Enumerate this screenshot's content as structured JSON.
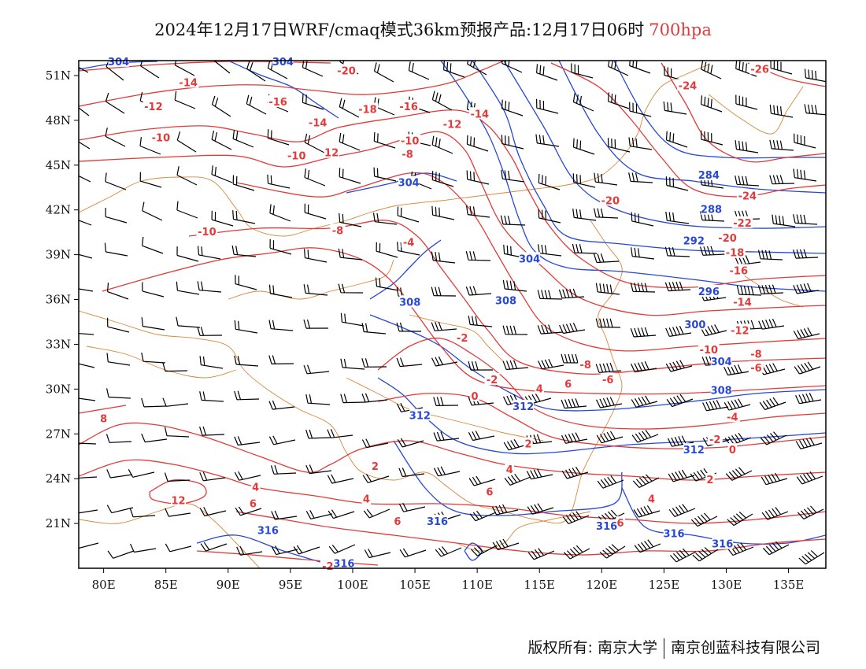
{
  "title": {
    "text": "2024年12月17日WRF/cmaq模式36km预报产品:12月17日06时",
    "level": "700hpa"
  },
  "map": {
    "lon_range": [
      78,
      138
    ],
    "lat_range": [
      18,
      52
    ],
    "lon_ticks": [
      {
        "value": 80,
        "label": "80E"
      },
      {
        "value": 85,
        "label": "85E"
      },
      {
        "value": 90,
        "label": "90E"
      },
      {
        "value": 95,
        "label": "95E"
      },
      {
        "value": 100,
        "label": "100E"
      },
      {
        "value": 105,
        "label": "105E"
      },
      {
        "value": 110,
        "label": "110E"
      },
      {
        "value": 115,
        "label": "115E"
      },
      {
        "value": 120,
        "label": "120E"
      },
      {
        "value": 125,
        "label": "125E"
      },
      {
        "value": 130,
        "label": "130E"
      },
      {
        "value": 135,
        "label": "135E"
      }
    ],
    "lat_ticks": [
      {
        "value": 51,
        "label": "51N"
      },
      {
        "value": 48,
        "label": "48N"
      },
      {
        "value": 45,
        "label": "45N"
      },
      {
        "value": 42,
        "label": "42N"
      },
      {
        "value": 39,
        "label": "39N"
      },
      {
        "value": 36,
        "label": "36N"
      },
      {
        "value": 33,
        "label": "33N"
      },
      {
        "value": 30,
        "label": "30N"
      },
      {
        "value": 27,
        "label": "27N"
      },
      {
        "value": 24,
        "label": "24N"
      },
      {
        "value": 21,
        "label": "21N"
      }
    ],
    "colors": {
      "temperature": "#e23a3a",
      "height": "#2747d8",
      "border": "#d9883a",
      "barb": "#000000",
      "frame": "#000000"
    },
    "temperature_labels": [
      {
        "text": "-20",
        "lon": 99.5,
        "lat": 51.3
      },
      {
        "text": "-14",
        "lon": 86.8,
        "lat": 50.5
      },
      {
        "text": "-12",
        "lon": 84.0,
        "lat": 48.9
      },
      {
        "text": "-16",
        "lon": 94.0,
        "lat": 49.2
      },
      {
        "text": "-18",
        "lon": 101.2,
        "lat": 48.7
      },
      {
        "text": "-16",
        "lon": 104.5,
        "lat": 48.9
      },
      {
        "text": "-14",
        "lon": 97.2,
        "lat": 47.8
      },
      {
        "text": "-12",
        "lon": 108.0,
        "lat": 47.7
      },
      {
        "text": "-14",
        "lon": 110.2,
        "lat": 48.4
      },
      {
        "text": "-10",
        "lon": 84.6,
        "lat": 46.8
      },
      {
        "text": "-10",
        "lon": 104.6,
        "lat": 46.6
      },
      {
        "text": "-10",
        "lon": 95.5,
        "lat": 45.6
      },
      {
        "text": "12",
        "lon": 98.3,
        "lat": 45.8
      },
      {
        "text": "-8",
        "lon": 104.4,
        "lat": 45.7
      },
      {
        "text": "-10",
        "lon": 88.3,
        "lat": 40.5
      },
      {
        "text": "-8",
        "lon": 98.8,
        "lat": 40.6
      },
      {
        "text": "-4",
        "lon": 104.5,
        "lat": 39.8
      },
      {
        "text": "-2",
        "lon": 108.8,
        "lat": 33.4
      },
      {
        "text": "-2",
        "lon": 111.2,
        "lat": 30.6
      },
      {
        "text": "0",
        "lon": 109.8,
        "lat": 29.5
      },
      {
        "text": "4",
        "lon": 115.0,
        "lat": 30.0
      },
      {
        "text": "6",
        "lon": 117.3,
        "lat": 30.3
      },
      {
        "text": "-8",
        "lon": 118.7,
        "lat": 31.6
      },
      {
        "text": "-6",
        "lon": 120.5,
        "lat": 30.6
      },
      {
        "text": "-20",
        "lon": 120.7,
        "lat": 42.6
      },
      {
        "text": "-24",
        "lon": 126.9,
        "lat": 50.3
      },
      {
        "text": "-26",
        "lon": 132.7,
        "lat": 51.4
      },
      {
        "text": "-24",
        "lon": 131.7,
        "lat": 42.9
      },
      {
        "text": "-22",
        "lon": 131.3,
        "lat": 41.1
      },
      {
        "text": "-20",
        "lon": 130.1,
        "lat": 40.1
      },
      {
        "text": "-18",
        "lon": 130.7,
        "lat": 39.1
      },
      {
        "text": "-16",
        "lon": 131.0,
        "lat": 37.9
      },
      {
        "text": "-14",
        "lon": 131.3,
        "lat": 35.8
      },
      {
        "text": "-12",
        "lon": 131.1,
        "lat": 33.9
      },
      {
        "text": "-10",
        "lon": 128.6,
        "lat": 32.6
      },
      {
        "text": "-8",
        "lon": 132.4,
        "lat": 32.3
      },
      {
        "text": "-6",
        "lon": 132.4,
        "lat": 31.4
      },
      {
        "text": "-4",
        "lon": 130.5,
        "lat": 28.1
      },
      {
        "text": "-2",
        "lon": 129.1,
        "lat": 26.6
      },
      {
        "text": "0",
        "lon": 130.5,
        "lat": 25.9
      },
      {
        "text": "2",
        "lon": 128.7,
        "lat": 23.9
      },
      {
        "text": "4",
        "lon": 124.0,
        "lat": 22.6
      },
      {
        "text": "6",
        "lon": 121.5,
        "lat": 21.0
      },
      {
        "text": "2",
        "lon": 114.1,
        "lat": 26.3
      },
      {
        "text": "4",
        "lon": 112.6,
        "lat": 24.6
      },
      {
        "text": "6",
        "lon": 111.0,
        "lat": 23.1
      },
      {
        "text": "2",
        "lon": 101.8,
        "lat": 24.8
      },
      {
        "text": "4",
        "lon": 101.1,
        "lat": 22.6
      },
      {
        "text": "6",
        "lon": 103.6,
        "lat": 21.1
      },
      {
        "text": "8",
        "lon": 80.0,
        "lat": 28.0
      },
      {
        "text": "4",
        "lon": 92.2,
        "lat": 23.4
      },
      {
        "text": "6",
        "lon": 92.0,
        "lat": 22.3
      },
      {
        "text": "12",
        "lon": 86.0,
        "lat": 22.5
      },
      {
        "text": "-2",
        "lon": 98.0,
        "lat": 18.1
      }
    ],
    "height_labels": [
      {
        "text": "304",
        "lon": 81.2,
        "lat": 51.9
      },
      {
        "text": "304",
        "lon": 94.4,
        "lat": 51.9
      },
      {
        "text": "304",
        "lon": 104.5,
        "lat": 43.8
      },
      {
        "text": "304",
        "lon": 114.2,
        "lat": 38.7
      },
      {
        "text": "308",
        "lon": 104.6,
        "lat": 35.8
      },
      {
        "text": "308",
        "lon": 112.3,
        "lat": 35.9
      },
      {
        "text": "312",
        "lon": 105.4,
        "lat": 28.2
      },
      {
        "text": "312",
        "lon": 113.7,
        "lat": 28.8
      },
      {
        "text": "316",
        "lon": 106.8,
        "lat": 21.1
      },
      {
        "text": "316",
        "lon": 120.4,
        "lat": 20.8
      },
      {
        "text": "316",
        "lon": 93.2,
        "lat": 20.5
      },
      {
        "text": "316",
        "lon": 99.3,
        "lat": 18.3
      },
      {
        "text": "284",
        "lon": 128.6,
        "lat": 44.3
      },
      {
        "text": "288",
        "lon": 128.8,
        "lat": 42.0
      },
      {
        "text": "292",
        "lon": 127.4,
        "lat": 39.9
      },
      {
        "text": "296",
        "lon": 128.6,
        "lat": 36.5
      },
      {
        "text": "300",
        "lon": 127.5,
        "lat": 34.3
      },
      {
        "text": "304",
        "lon": 129.6,
        "lat": 31.8
      },
      {
        "text": "308",
        "lon": 129.6,
        "lat": 29.9
      },
      {
        "text": "312",
        "lon": 127.4,
        "lat": 25.9
      },
      {
        "text": "316",
        "lon": 125.8,
        "lat": 20.3
      },
      {
        "text": "316",
        "lon": 129.7,
        "lat": 19.6
      }
    ],
    "footer": {
      "owner": "版权所有: 南京大学",
      "partner": "南京创蓝科技有限公司"
    }
  }
}
